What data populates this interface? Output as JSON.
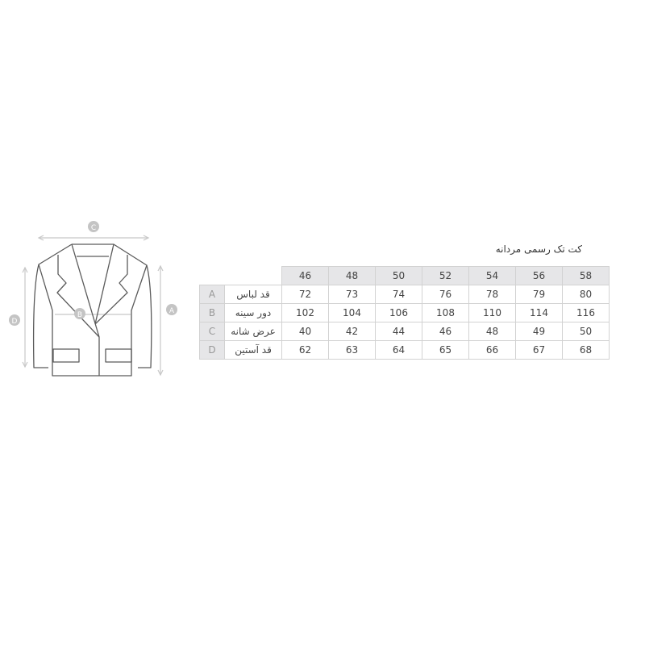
{
  "title": "کت تک رسمی مردانه",
  "diagram": {
    "markers": [
      "C",
      "B",
      "D",
      "A"
    ]
  },
  "table": {
    "sizes": [
      "46",
      "48",
      "50",
      "52",
      "54",
      "56",
      "58"
    ],
    "rows": [
      {
        "letter": "A",
        "name": "قد لباس",
        "values": [
          "72",
          "73",
          "74",
          "76",
          "78",
          "79",
          "80"
        ]
      },
      {
        "letter": "B",
        "name": "دور سینه",
        "values": [
          "102",
          "104",
          "106",
          "108",
          "110",
          "114",
          "116"
        ]
      },
      {
        "letter": "C",
        "name": "عرض شانه",
        "values": [
          "40",
          "42",
          "44",
          "46",
          "48",
          "49",
          "50"
        ]
      },
      {
        "letter": "D",
        "name": "قد آستین",
        "values": [
          "62",
          "63",
          "64",
          "65",
          "66",
          "67",
          "68"
        ]
      }
    ]
  },
  "colors": {
    "header_bg": "#e6e6e8",
    "border": "#d2d2d2",
    "marker": "#c4c4c4",
    "line": "#555555"
  }
}
